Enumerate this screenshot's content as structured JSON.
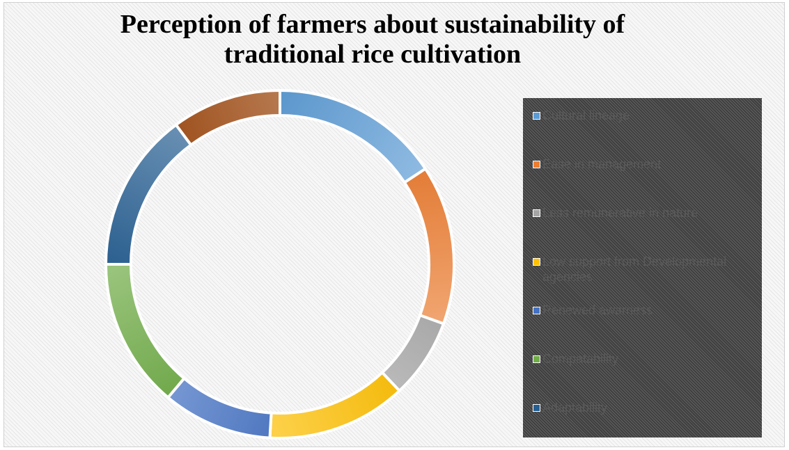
{
  "chart_data": {
    "type": "pie",
    "subtype": "donut",
    "title": "Perception of farmers about sustainability of traditional rice cultivation",
    "categories": [
      "Cultural lineage",
      "Ease in management",
      "Less remunerative in nature",
      "Low support from Developmental agencies",
      "Renewed awarness",
      "Compatability",
      "Adaptability",
      ""
    ],
    "values": [
      17,
      16,
      8,
      14,
      11,
      15,
      16,
      11
    ],
    "colors": [
      "#5B9BD5",
      "#ED7D31",
      "#A5A5A5",
      "#FFC000",
      "#4472C4",
      "#70AD47",
      "#255E91",
      "#9E480E"
    ],
    "legend": {
      "position": "right",
      "entries": [
        "Cultural lineage",
        "Ease in management",
        "Less remunerative in nature",
        "Low support from Developmental agencies",
        "Renewed awarness",
        "Compatability",
        "Adaptability"
      ]
    }
  }
}
